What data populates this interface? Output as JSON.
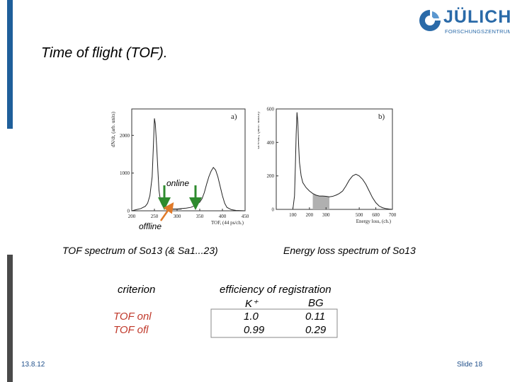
{
  "slide": {
    "title": "Time of flight (TOF).",
    "date": "13.8.12",
    "slide_number": "Slide 18"
  },
  "logo": {
    "name": "JÜLICH",
    "subtitle": "FORSCHUNGSZENTRUM",
    "color": "#2a6aa8"
  },
  "annotations": {
    "online": "online",
    "offline": "offline"
  },
  "captions": {
    "tof": "TOF spectrum of So13 (& Sa1...23)",
    "energy": "Energy loss spectrum of So13"
  },
  "table": {
    "criterion_header": "criterion",
    "efficiency_header": "efficiency of registration",
    "columns": [
      "K⁺",
      "BG"
    ],
    "rows": [
      {
        "label": "TOF onl",
        "values": [
          "1.0",
          "0.11"
        ]
      },
      {
        "label": "TOF ofl",
        "values": [
          "0.99",
          "0.29"
        ]
      }
    ]
  },
  "chart_data": [
    {
      "type": "line",
      "panel": "a)",
      "xlabel": "TOF, (44 ps/ch.)",
      "ylabel": "dN/dt, (arb. units)",
      "xticks": [
        "200",
        "250",
        "300",
        "350",
        "400",
        "450"
      ],
      "yticks": [
        "0",
        "1000",
        "2000"
      ],
      "xlim": [
        200,
        450
      ],
      "ylim": [
        0,
        2700
      ],
      "shaded_range": [
        280,
        310
      ],
      "x": [
        200,
        210,
        220,
        230,
        235,
        240,
        245,
        248,
        250,
        252,
        255,
        258,
        260,
        263,
        266,
        270,
        275,
        280,
        285,
        290,
        300,
        310,
        320,
        330,
        340,
        350,
        355,
        360,
        365,
        370,
        375,
        380,
        385,
        390,
        395,
        400,
        405,
        410,
        420,
        430,
        440,
        450
      ],
      "y": [
        0,
        30,
        60,
        120,
        200,
        400,
        900,
        1800,
        2450,
        2300,
        1700,
        1000,
        550,
        300,
        180,
        110,
        70,
        60,
        55,
        50,
        50,
        60,
        70,
        90,
        140,
        230,
        320,
        480,
        700,
        900,
        1050,
        1150,
        1080,
        900,
        650,
        400,
        200,
        90,
        30,
        10,
        5,
        0
      ]
    },
    {
      "type": "line",
      "panel": "b)",
      "xlabel": "Energy loss, (ch.)",
      "ylabel": "dN/dE, (arb. units)",
      "xticks": [
        "100",
        "200",
        "300",
        "500",
        "600",
        "700"
      ],
      "yticks": [
        "0",
        "200",
        "400",
        "600"
      ],
      "xlim": [
        0,
        700
      ],
      "ylim": [
        0,
        600
      ],
      "shaded_range": [
        220,
        320
      ],
      "x": [
        100,
        110,
        115,
        120,
        125,
        130,
        135,
        140,
        150,
        160,
        180,
        200,
        220,
        240,
        260,
        280,
        300,
        320,
        340,
        360,
        380,
        400,
        420,
        440,
        460,
        480,
        500,
        520,
        540,
        560,
        580,
        600,
        620,
        640,
        660,
        680,
        700
      ],
      "y": [
        0,
        80,
        250,
        450,
        580,
        520,
        380,
        280,
        200,
        160,
        130,
        110,
        95,
        85,
        80,
        80,
        78,
        75,
        78,
        85,
        95,
        110,
        140,
        175,
        200,
        210,
        200,
        180,
        150,
        110,
        70,
        40,
        20,
        10,
        5,
        2,
        0
      ]
    }
  ]
}
